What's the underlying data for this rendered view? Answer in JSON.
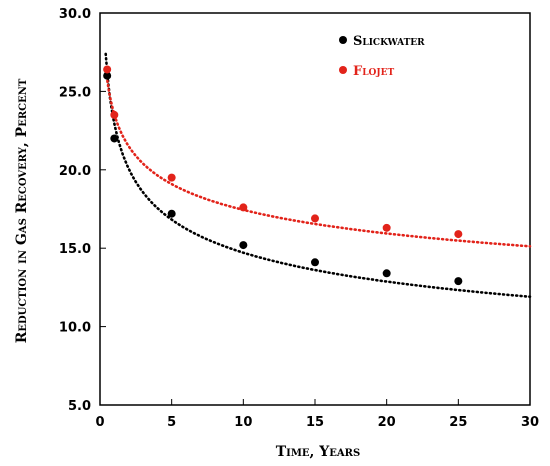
{
  "chart_data": {
    "type": "scatter",
    "xlabel": "Time, Years",
    "ylabel": "Reduction in Gas Recovery, Percent",
    "xlim": [
      0,
      30
    ],
    "ylim": [
      5.0,
      30.0
    ],
    "x_ticks": [
      "0",
      "5",
      "10",
      "15",
      "20",
      "25",
      "30"
    ],
    "y_ticks": [
      "5.0",
      "10.0",
      "15.0",
      "20.0",
      "25.0",
      "30.0"
    ],
    "grid": false,
    "legend_position": "top-right",
    "series": [
      {
        "name": "Slickwater",
        "color": "#000000",
        "x": [
          0.5,
          1,
          5,
          10,
          15,
          20,
          25
        ],
        "y": [
          26.0,
          22.0,
          17.2,
          15.2,
          14.1,
          13.4,
          12.9
        ],
        "trendline": {
          "type": "power",
          "a": 22.95,
          "b": -0.193,
          "style": "dotted"
        }
      },
      {
        "name": "Flojet",
        "color": "#e2231a",
        "x": [
          0.5,
          1,
          5,
          10,
          15,
          20,
          25
        ],
        "y": [
          26.4,
          23.5,
          19.5,
          17.6,
          16.9,
          16.3,
          15.9
        ],
        "trendline": {
          "type": "power",
          "a": 23.53,
          "b": -0.13,
          "style": "dotted"
        }
      }
    ]
  }
}
